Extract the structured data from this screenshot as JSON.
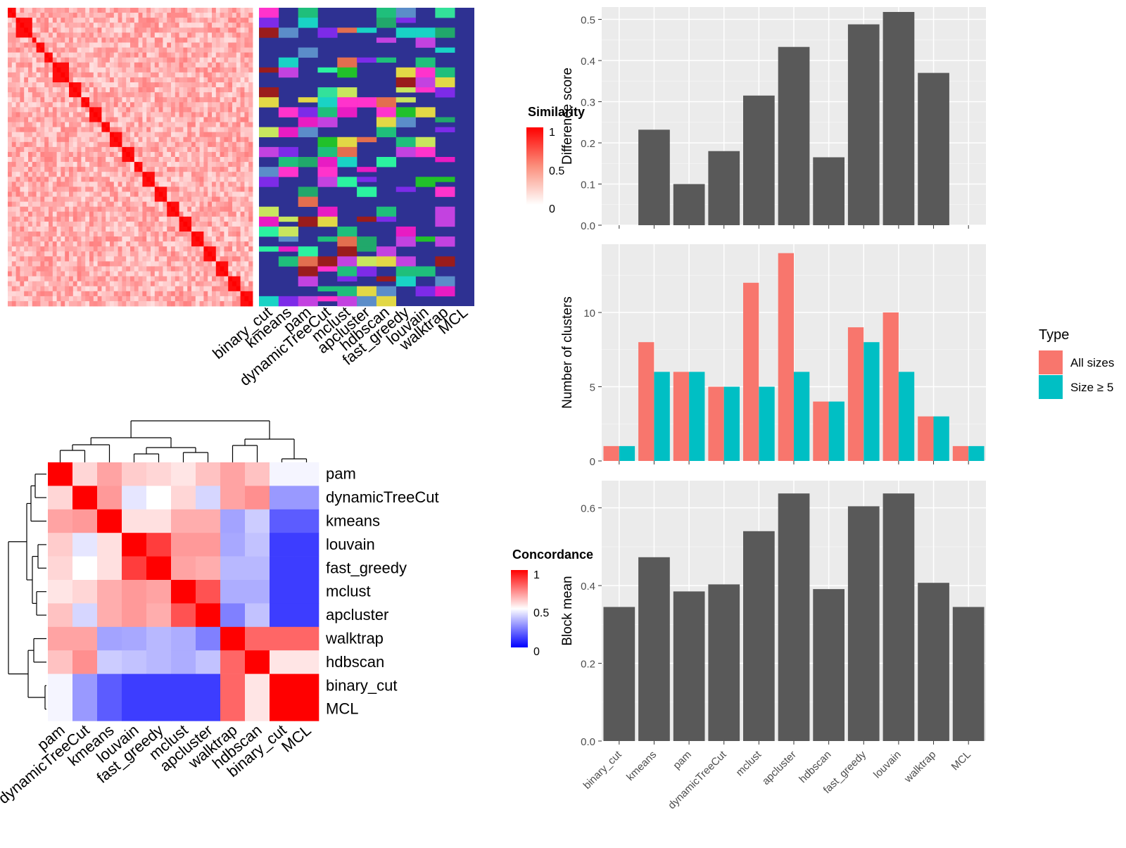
{
  "methods_heatmap_order": [
    "binary_cut",
    "kmeans",
    "pam",
    "dynamicTreeCut",
    "mclust",
    "apcluster",
    "hdbscan",
    "fast_greedy",
    "louvain",
    "walktrap",
    "MCL"
  ],
  "similarity_legend": {
    "title": "Similarity",
    "ticks": [
      "1",
      "0.5",
      "0"
    ]
  },
  "concordance_legend": {
    "title": "Concordance",
    "ticks": [
      "1",
      "0.5",
      "0"
    ]
  },
  "concordance_labels": [
    "pam",
    "dynamicTreeCut",
    "kmeans",
    "louvain",
    "fast_greedy",
    "mclust",
    "apcluster",
    "walktrap",
    "hdbscan",
    "binary_cut",
    "MCL"
  ],
  "colors": {
    "bar": "#595959",
    "panel_bg": "#ebebeb",
    "all_sizes": "#F8766D",
    "size_ge5": "#00BFC4",
    "heat_high": "#ff0000",
    "conc_low": "#0000ff"
  },
  "chart_data": [
    {
      "type": "bar",
      "categories": [
        "binary_cut",
        "kmeans",
        "pam",
        "dynamicTreeCut",
        "mclust",
        "apcluster",
        "hdbscan",
        "fast_greedy",
        "louvain",
        "walktrap",
        "MCL"
      ],
      "values": [
        0,
        0.232,
        0.1,
        0.18,
        0.315,
        0.433,
        0.165,
        0.488,
        0.518,
        0.37,
        0
      ],
      "ylabel": "Difference score",
      "ylim": [
        0,
        0.53
      ],
      "yticks": [
        "0.0",
        "0.1",
        "0.2",
        "0.3",
        "0.4",
        "0.5"
      ]
    },
    {
      "type": "bar",
      "categories": [
        "binary_cut",
        "kmeans",
        "pam",
        "dynamicTreeCut",
        "mclust",
        "apcluster",
        "hdbscan",
        "fast_greedy",
        "louvain",
        "walktrap",
        "MCL"
      ],
      "series": [
        {
          "name": "All sizes",
          "values": [
            1,
            8,
            6,
            5,
            12,
            14,
            4,
            9,
            10,
            3,
            1
          ]
        },
        {
          "name": "Size ≥ 5",
          "values": [
            1,
            6,
            6,
            5,
            5,
            6,
            4,
            8,
            6,
            3,
            1
          ]
        }
      ],
      "ylabel": "Number of clusters",
      "ylim": [
        0,
        14.6
      ],
      "yticks": [
        "0",
        "5",
        "10"
      ],
      "legend": {
        "title": "Type",
        "position": "right"
      }
    },
    {
      "type": "bar",
      "categories": [
        "binary_cut",
        "kmeans",
        "pam",
        "dynamicTreeCut",
        "mclust",
        "apcluster",
        "hdbscan",
        "fast_greedy",
        "louvain",
        "walktrap",
        "MCL"
      ],
      "values": [
        0.345,
        0.473,
        0.385,
        0.403,
        0.54,
        0.637,
        0.391,
        0.604,
        0.637,
        0.407,
        0.345
      ],
      "ylabel": "Block mean",
      "ylim": [
        0,
        0.67
      ],
      "yticks": [
        "0.0",
        "0.2",
        "0.4",
        "0.6"
      ]
    },
    {
      "type": "heatmap",
      "rows": [
        "pam",
        "dynamicTreeCut",
        "kmeans",
        "louvain",
        "fast_greedy",
        "mclust",
        "apcluster",
        "walktrap",
        "hdbscan",
        "binary_cut",
        "MCL"
      ],
      "columns": [
        "pam",
        "dynamicTreeCut",
        "kmeans",
        "louvain",
        "fast_greedy",
        "mclust",
        "apcluster",
        "walktrap",
        "hdbscan",
        "binary_cut",
        "MCL"
      ],
      "values": [
        [
          1.0,
          0.58,
          0.68,
          0.6,
          0.58,
          0.55,
          0.62,
          0.68,
          0.62,
          0.48,
          0.48
        ],
        [
          0.58,
          1.0,
          0.7,
          0.45,
          0.5,
          0.58,
          0.42,
          0.68,
          0.72,
          0.3,
          0.3
        ],
        [
          0.68,
          0.7,
          1.0,
          0.56,
          0.56,
          0.66,
          0.66,
          0.32,
          0.4,
          0.18,
          0.18
        ],
        [
          0.6,
          0.45,
          0.56,
          1.0,
          0.88,
          0.7,
          0.7,
          0.33,
          0.38,
          0.12,
          0.12
        ],
        [
          0.58,
          0.5,
          0.56,
          0.88,
          1.0,
          0.68,
          0.66,
          0.36,
          0.36,
          0.12,
          0.12
        ],
        [
          0.55,
          0.58,
          0.66,
          0.7,
          0.68,
          1.0,
          0.84,
          0.34,
          0.34,
          0.12,
          0.12
        ],
        [
          0.62,
          0.42,
          0.66,
          0.7,
          0.66,
          0.84,
          1.0,
          0.25,
          0.38,
          0.12,
          0.12
        ],
        [
          0.68,
          0.68,
          0.32,
          0.33,
          0.36,
          0.34,
          0.25,
          1.0,
          0.8,
          0.8,
          0.8
        ],
        [
          0.62,
          0.72,
          0.4,
          0.38,
          0.36,
          0.34,
          0.38,
          0.8,
          1.0,
          0.55,
          0.55
        ],
        [
          0.48,
          0.3,
          0.18,
          0.12,
          0.12,
          0.12,
          0.12,
          0.8,
          0.55,
          1.0,
          1.0
        ],
        [
          0.48,
          0.3,
          0.18,
          0.12,
          0.12,
          0.12,
          0.12,
          0.8,
          0.55,
          1.0,
          1.0
        ]
      ]
    }
  ]
}
